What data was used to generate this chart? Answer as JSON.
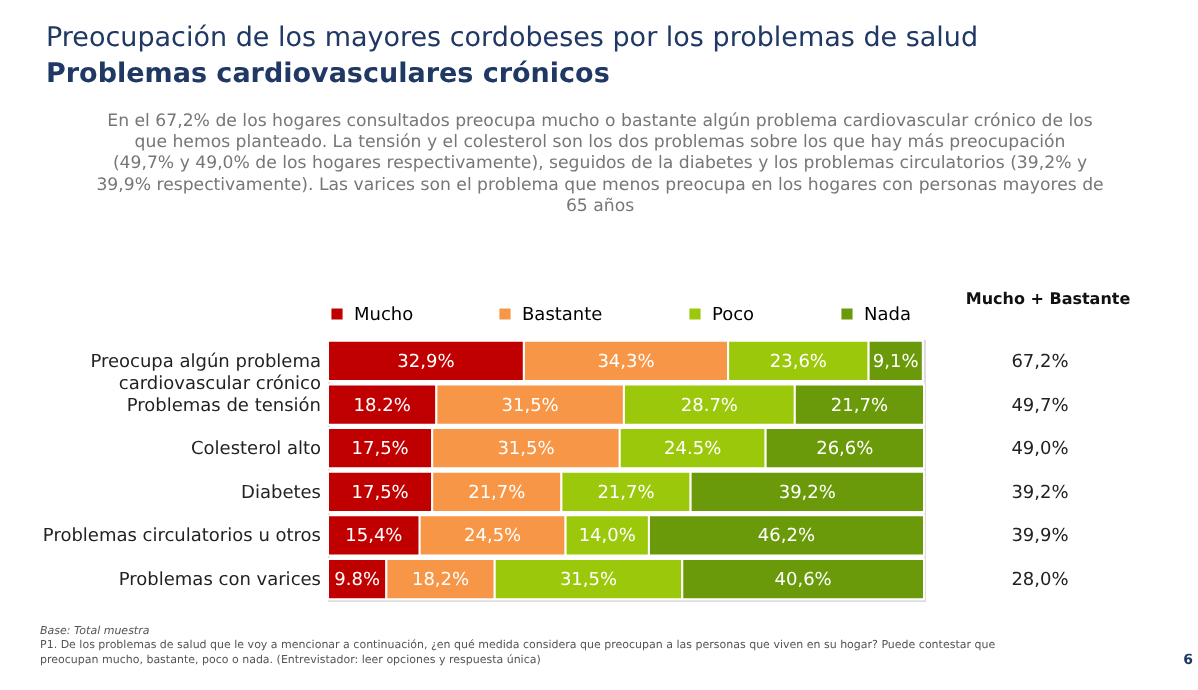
{
  "chart_data": {
    "type": "bar",
    "orientation": "horizontal",
    "stacked": true,
    "title": "Preocupación de los mayores cordobeses por los problemas de salud",
    "subtitle": "Problemas cardiovasculares crónicos",
    "categories": [
      "Preocupa algún problema cardiovascular crónico",
      "Problemas de tensión",
      "Colesterol alto",
      "Diabetes",
      "Problemas circulatorios u otros",
      "Problemas con varices"
    ],
    "series": [
      {
        "name": "Mucho",
        "color": "#c00000",
        "values": [
          32.9,
          18.2,
          17.5,
          17.5,
          15.4,
          9.8
        ],
        "value_labels": [
          "32,9%",
          "18.2%",
          "17,5%",
          "17,5%",
          "15,4%",
          "9.8%"
        ]
      },
      {
        "name": "Bastante",
        "color": "#f79646",
        "values": [
          34.3,
          31.5,
          31.5,
          21.7,
          24.5,
          18.2
        ],
        "value_labels": [
          "34,3%",
          "31,5%",
          "31,5%",
          "21,7%",
          "24,5%",
          "18,2%"
        ]
      },
      {
        "name": "Poco",
        "color": "#9bc80a",
        "values": [
          23.6,
          28.7,
          24.5,
          21.7,
          14.0,
          31.5
        ],
        "value_labels": [
          "23,6%",
          "28.7%",
          "24.5%",
          "21,7%",
          "14,0%",
          "31,5%"
        ]
      },
      {
        "name": "Nada",
        "color": "#6a9a0a",
        "values": [
          9.1,
          21.7,
          26.6,
          39.2,
          46.2,
          40.6
        ],
        "value_labels": [
          "9,1%",
          "21,7%",
          "26,6%",
          "39,2%",
          "46,2%",
          "40,6%"
        ]
      }
    ],
    "legend": "top",
    "grid": false,
    "annotations": [
      "En el 67,2% de los hogares consultados preocupa mucho o bastante algún problema cardiovascular crónico de los que hemos planteado. La tensión y el colesterol son los dos problemas sobre los que hay más preocupación (49,7% y 49,0% de los hogares respectivamente), seguidos de la diabetes y los problemas circulatorios (39,2% y 39,9% respectivamente). Las varices son el problema que menos preocupa en los hogares con personas mayores de 65 años",
      "Mucho + Bastante",
      "67,2%",
      "49,7%",
      "49,0%",
      "39,2%",
      "39,9%",
      "28,0%",
      "Base: Total muestra",
      "P1. De los problemas de salud que le voy a mencionar a continuación, ¿en qué medida considera que preocupan a las personas que viven en su hogar? Puede contestar que preocupan mucho, bastante, poco o nada. (Entrevistador: leer opciones y respuesta única)",
      "6"
    ]
  }
}
